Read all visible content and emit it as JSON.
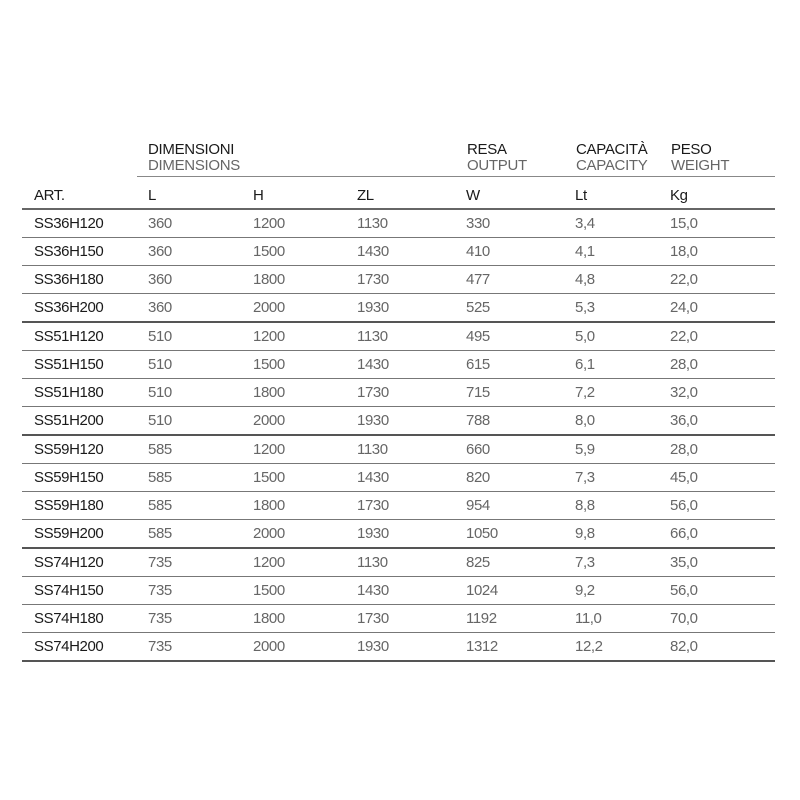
{
  "header": {
    "dimensions": {
      "it": "DIMENSIONI",
      "en": "DIMENSIONS"
    },
    "output": {
      "it": "RESA",
      "en": "OUTPUT"
    },
    "capacity": {
      "it": "CAPACITÀ",
      "en": "CAPACITY"
    },
    "weight": {
      "it": "PESO",
      "en": "WEIGHT"
    }
  },
  "columns": [
    "ART.",
    "L",
    "H",
    "ZL",
    "W",
    "Lt",
    "Kg"
  ],
  "rows": [
    [
      "SS36H120",
      "360",
      "1200",
      "1130",
      "330",
      "3,4",
      "15,0"
    ],
    [
      "SS36H150",
      "360",
      "1500",
      "1430",
      "410",
      "4,1",
      "18,0"
    ],
    [
      "SS36H180",
      "360",
      "1800",
      "1730",
      "477",
      "4,8",
      "22,0"
    ],
    [
      "SS36H200",
      "360",
      "2000",
      "1930",
      "525",
      "5,3",
      "24,0"
    ],
    [
      "SS51H120",
      "510",
      "1200",
      "1130",
      "495",
      "5,0",
      "22,0"
    ],
    [
      "SS51H150",
      "510",
      "1500",
      "1430",
      "615",
      "6,1",
      "28,0"
    ],
    [
      "SS51H180",
      "510",
      "1800",
      "1730",
      "715",
      "7,2",
      "32,0"
    ],
    [
      "SS51H200",
      "510",
      "2000",
      "1930",
      "788",
      "8,0",
      "36,0"
    ],
    [
      "SS59H120",
      "585",
      "1200",
      "1130",
      "660",
      "5,9",
      "28,0"
    ],
    [
      "SS59H150",
      "585",
      "1500",
      "1430",
      "820",
      "7,3",
      "45,0"
    ],
    [
      "SS59H180",
      "585",
      "1800",
      "1730",
      "954",
      "8,8",
      "56,0"
    ],
    [
      "SS59H200",
      "585",
      "2000",
      "1930",
      "1050",
      "9,8",
      "66,0"
    ],
    [
      "SS74H120",
      "735",
      "1200",
      "1130",
      "825",
      "7,3",
      "35,0"
    ],
    [
      "SS74H150",
      "735",
      "1500",
      "1430",
      "1024",
      "9,2",
      "56,0"
    ],
    [
      "SS74H180",
      "735",
      "1800",
      "1730",
      "1192",
      "11,0",
      "70,0"
    ],
    [
      "SS74H200",
      "735",
      "2000",
      "1930",
      "1312",
      "12,2",
      "82,0"
    ]
  ]
}
